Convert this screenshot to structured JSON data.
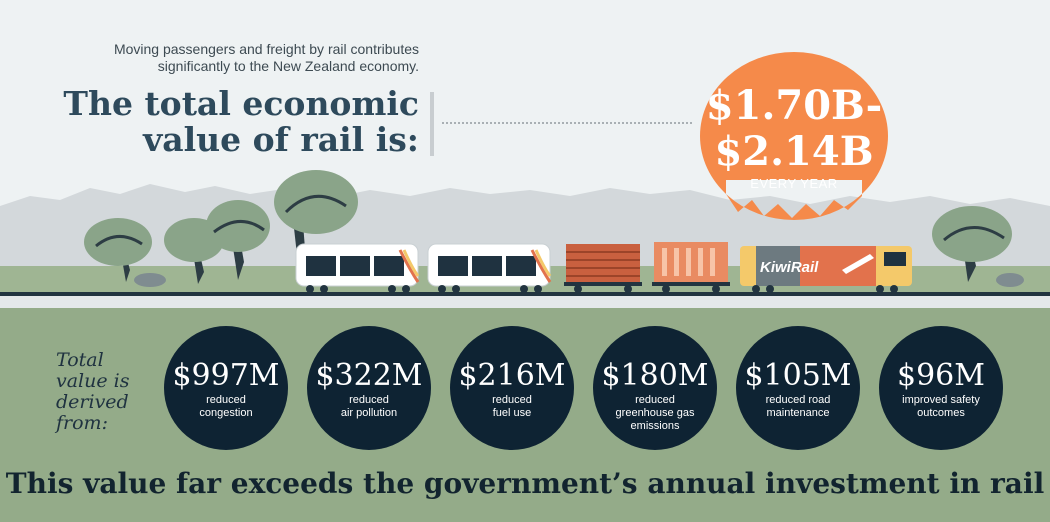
{
  "intro": {
    "line1": "Moving passengers and freight by rail contributes",
    "line2": "significantly to the New Zealand economy."
  },
  "headline": {
    "line1": "The total economic",
    "line2": "value of rail is:"
  },
  "value_bubble": {
    "line1": "$1.70B-",
    "line2": "$2.14B",
    "period": "EVERY YEAR",
    "color": "#f58a4a"
  },
  "locomotive_brand": "KiwiRail",
  "derived_label": {
    "line1": "Total",
    "line2": "value is",
    "line3": "derived",
    "line4": "from:"
  },
  "benefits": [
    {
      "amount": "$997M",
      "line1": "reduced",
      "line2": "congestion"
    },
    {
      "amount": "$322M",
      "line1": "reduced",
      "line2": "air pollution"
    },
    {
      "amount": "$216M",
      "line1": "reduced",
      "line2": "fuel use"
    },
    {
      "amount": "$180M",
      "line1": "reduced",
      "line2": "greenhouse gas",
      "line3": "emissions"
    },
    {
      "amount": "$105M",
      "line1": "reduced road",
      "line2": "maintenance"
    },
    {
      "amount": "$96M",
      "line1": "improved safety",
      "line2": "outcomes"
    }
  ],
  "footer": "This value far exceeds the government’s annual investment in rail",
  "colors": {
    "sky": "#eef2f3",
    "hills": "#d3d8db",
    "grass": "#9fb593",
    "lower_band": "#94ab89",
    "circle": "#0e2333",
    "headline": "#2e4a5c",
    "log_wagon": "#c9603f",
    "box_wagon": "#e98b62",
    "loco_yellow": "#f4c96a",
    "loco_orange": "#e2724c"
  }
}
